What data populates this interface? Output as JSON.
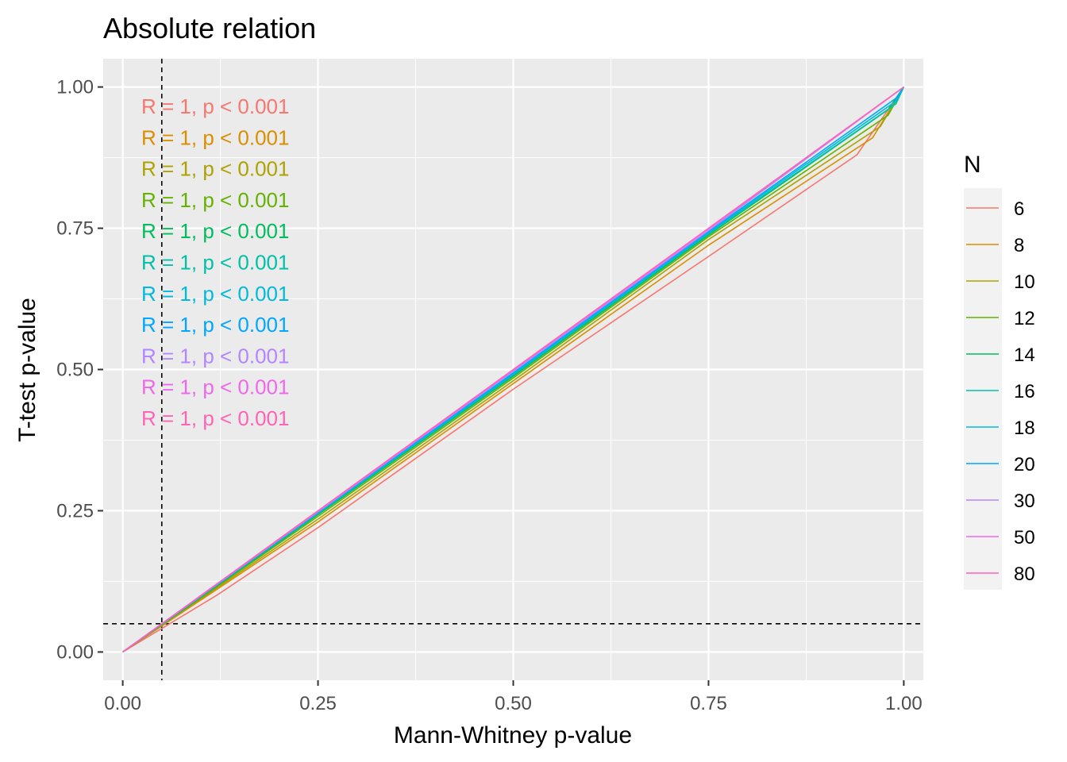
{
  "chart_data": {
    "type": "line",
    "title": "Absolute relation",
    "xlabel": "Mann-Whitney p-value",
    "ylabel": "T-test p-value",
    "xlim": [
      -0.025,
      1.025
    ],
    "ylim": [
      -0.05,
      1.05
    ],
    "xticks": [
      "0.00",
      "0.25",
      "0.50",
      "0.75",
      "1.00"
    ],
    "yticks": [
      "0.00",
      "0.25",
      "0.50",
      "0.75",
      "1.00"
    ],
    "grid": true,
    "reference_lines": {
      "vline_x": 0.05,
      "hline_y": 0.05,
      "style": "dashed"
    },
    "legend": {
      "title": "N",
      "position": "right"
    },
    "series": [
      {
        "name": "6",
        "color": "#F8766D",
        "x": [
          0,
          0.12,
          0.25,
          0.5,
          0.75,
          0.94,
          1.0
        ],
        "y": [
          0,
          0.1,
          0.22,
          0.465,
          0.7,
          0.88,
          1.0
        ]
      },
      {
        "name": "8",
        "color": "#DB8E00",
        "x": [
          0,
          0.25,
          0.5,
          0.75,
          0.96,
          1.0
        ],
        "y": [
          0,
          0.23,
          0.475,
          0.72,
          0.91,
          1.0
        ]
      },
      {
        "name": "10",
        "color": "#AEA200",
        "x": [
          0,
          0.25,
          0.5,
          0.75,
          0.97,
          1.0
        ],
        "y": [
          0,
          0.235,
          0.48,
          0.73,
          0.93,
          1.0
        ]
      },
      {
        "name": "12",
        "color": "#64B200",
        "x": [
          0,
          0.25,
          0.5,
          0.75,
          0.98,
          1.0
        ],
        "y": [
          0,
          0.24,
          0.485,
          0.735,
          0.95,
          1.0
        ]
      },
      {
        "name": "14",
        "color": "#00BD5C",
        "x": [
          0,
          0.25,
          0.5,
          0.75,
          0.98,
          1.0
        ],
        "y": [
          0,
          0.243,
          0.488,
          0.738,
          0.96,
          1.0
        ]
      },
      {
        "name": "16",
        "color": "#00C1A7",
        "x": [
          0,
          0.25,
          0.5,
          0.75,
          0.99,
          1.0
        ],
        "y": [
          0,
          0.245,
          0.49,
          0.74,
          0.97,
          1.0
        ]
      },
      {
        "name": "18",
        "color": "#00BADE",
        "x": [
          0,
          0.25,
          0.5,
          0.75,
          0.99,
          1.0
        ],
        "y": [
          0,
          0.246,
          0.492,
          0.742,
          0.975,
          1.0
        ]
      },
      {
        "name": "20",
        "color": "#00A6FF",
        "x": [
          0,
          0.25,
          0.5,
          0.75,
          0.99,
          1.0
        ],
        "y": [
          0,
          0.247,
          0.494,
          0.744,
          0.98,
          1.0
        ]
      },
      {
        "name": "30",
        "color": "#B385FF",
        "x": [
          0,
          0.25,
          0.5,
          0.75,
          1.0
        ],
        "y": [
          0,
          0.248,
          0.497,
          0.746,
          1.0
        ]
      },
      {
        "name": "50",
        "color": "#EF67EB",
        "x": [
          0,
          0.25,
          0.5,
          0.75,
          1.0
        ],
        "y": [
          0,
          0.249,
          0.499,
          0.749,
          1.0
        ]
      },
      {
        "name": "80",
        "color": "#FF63B6",
        "x": [
          0,
          0.25,
          0.5,
          0.75,
          1.0
        ],
        "y": [
          0,
          0.25,
          0.5,
          0.75,
          1.0
        ]
      }
    ],
    "annotations": [
      {
        "text": "R = 1, p < 0.001",
        "color": "#F8766D"
      },
      {
        "text": "R = 1, p < 0.001",
        "color": "#DB8E00"
      },
      {
        "text": "R = 1, p < 0.001",
        "color": "#AEA200"
      },
      {
        "text": "R = 1, p < 0.001",
        "color": "#64B200"
      },
      {
        "text": "R = 1, p < 0.001",
        "color": "#00BD5C"
      },
      {
        "text": "R = 1, p < 0.001",
        "color": "#00C1A7"
      },
      {
        "text": "R = 1, p < 0.001",
        "color": "#00BADE"
      },
      {
        "text": "R = 1, p < 0.001",
        "color": "#00A6FF"
      },
      {
        "text": "R = 1, p < 0.001",
        "color": "#B385FF"
      },
      {
        "text": "R = 1, p < 0.001",
        "color": "#EF67EB"
      },
      {
        "text": "R = 1, p < 0.001",
        "color": "#FF63B6"
      }
    ]
  }
}
